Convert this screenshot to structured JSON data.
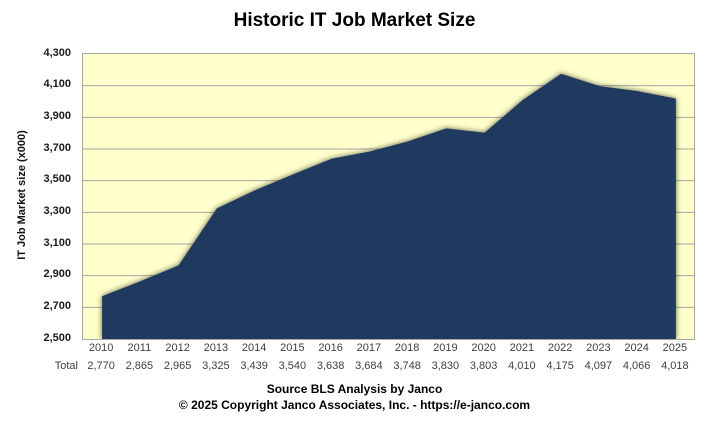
{
  "title": "Historic IT Job Market Size",
  "y_axis_title": "IT Job Market size (x000)",
  "footer": {
    "source": "Source BLS Analysis by Janco",
    "copyright": "© 2025 Copyright Janco Associates, Inc. - https://e-janco.com"
  },
  "table": {
    "row_label": "Total",
    "values_formatted": [
      "2,770",
      "2,865",
      "2,965",
      "3,325",
      "3,439",
      "3,540",
      "3,638",
      "3,684",
      "3,748",
      "3,830",
      "3,803",
      "4,010",
      "4,175",
      "4,097",
      "4,066",
      "4,018"
    ]
  },
  "colors": {
    "area_fill": "#1F3A5E",
    "plot_background": "#FFFFCC",
    "gridline": "#A6A6A6",
    "axis_label": "#404040"
  },
  "chart_data": {
    "type": "area",
    "title": "Historic IT Job Market Size",
    "xlabel": "",
    "ylabel": "IT Job Market size (x000)",
    "categories": [
      "2010",
      "2011",
      "2012",
      "2013",
      "2014",
      "2015",
      "2016",
      "2017",
      "2018",
      "2019",
      "2020",
      "2021",
      "2022",
      "2023",
      "2024",
      "2025"
    ],
    "series": [
      {
        "name": "Total",
        "values": [
          2770,
          2865,
          2965,
          3325,
          3439,
          3540,
          3638,
          3684,
          3748,
          3830,
          3803,
          4010,
          4175,
          4097,
          4066,
          4018
        ]
      }
    ],
    "ylim": [
      2500,
      4300
    ],
    "ytick_step": 200,
    "ytick_labels_top_to_bottom": [
      "4,300",
      "4,100",
      "3,900",
      "3,700",
      "3,500",
      "3,300",
      "3,100",
      "2,900",
      "2,700",
      "2,500"
    ],
    "grid": "horizontal",
    "legend": "none"
  }
}
